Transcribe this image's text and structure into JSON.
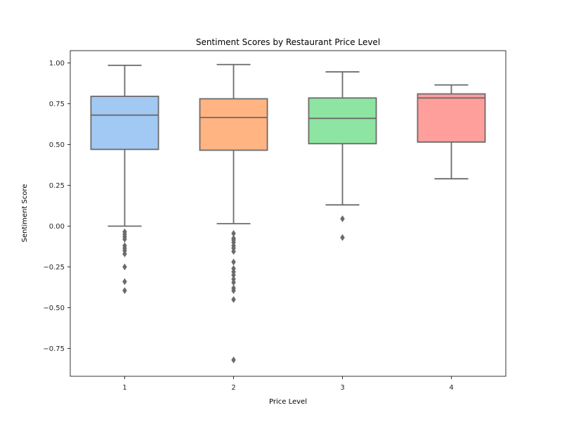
{
  "chart_data": {
    "type": "box",
    "title": "Sentiment Scores by Restaurant Price Level",
    "xlabel": "Price Level",
    "ylabel": "Sentiment Score",
    "ylim": [
      -0.92,
      1.075
    ],
    "yticks": [
      -0.75,
      -0.5,
      -0.25,
      0.0,
      0.25,
      0.5,
      0.75,
      1.0
    ],
    "ytick_labels": [
      "−0.75",
      "−0.50",
      "−0.25",
      "0.00",
      "0.25",
      "0.50",
      "0.75",
      "1.00"
    ],
    "categories": [
      "1",
      "2",
      "3",
      "4"
    ],
    "grid": false,
    "series": [
      {
        "category": "1",
        "color": "#a1c9f4",
        "whisker_low": 0.0,
        "q1": 0.47,
        "median": 0.68,
        "q3": 0.795,
        "whisker_high": 0.985,
        "outliers": [
          -0.035,
          -0.05,
          -0.065,
          -0.08,
          -0.12,
          -0.135,
          -0.15,
          -0.17,
          -0.25,
          -0.34,
          -0.395
        ]
      },
      {
        "category": "2",
        "color": "#ffb482",
        "whisker_low": 0.015,
        "q1": 0.465,
        "median": 0.665,
        "q3": 0.78,
        "whisker_high": 0.99,
        "outliers": [
          -0.045,
          -0.075,
          -0.085,
          -0.1,
          -0.12,
          -0.135,
          -0.155,
          -0.22,
          -0.26,
          -0.28,
          -0.3,
          -0.325,
          -0.345,
          -0.38,
          -0.395,
          -0.45,
          -0.82
        ]
      },
      {
        "category": "3",
        "color": "#8de5a1",
        "whisker_low": 0.13,
        "q1": 0.505,
        "median": 0.66,
        "q3": 0.785,
        "whisker_high": 0.945,
        "outliers": [
          0.045,
          -0.07
        ]
      },
      {
        "category": "4",
        "color": "#ff9f9b",
        "whisker_low": 0.29,
        "q1": 0.515,
        "median": 0.785,
        "q3": 0.81,
        "whisker_high": 0.865,
        "outliers": []
      }
    ]
  },
  "colors": {
    "line": "#6b6b6b",
    "axis": "#000000"
  }
}
